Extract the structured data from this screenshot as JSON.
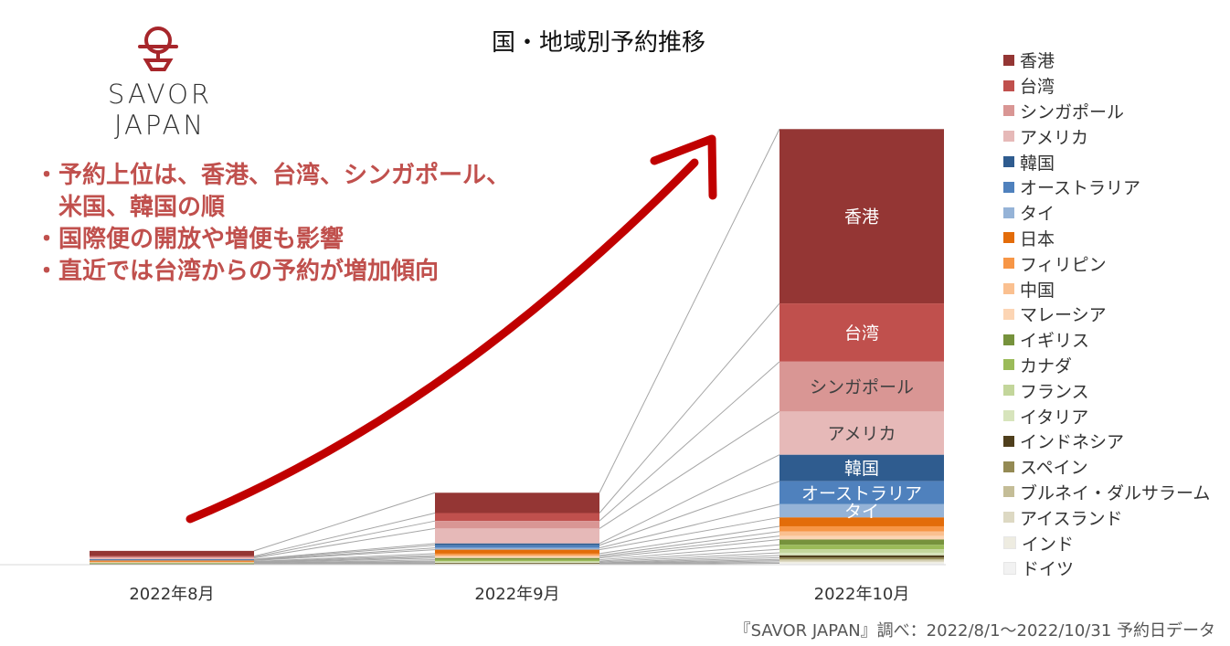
{
  "header": {
    "title": "国・地域別予約推移",
    "logo_text": "SAVOR JAPAN"
  },
  "bullets": [
    "・予約上位は、香港、台湾、シンガポール、",
    "　米国、韓国の順",
    "・国際便の開放や増便も影響",
    "・直近では台湾からの予約が増加傾向"
  ],
  "source": "『SAVOR JAPAN』調べ：2022/8/1～2022/10/31 予約日データ",
  "chart_data": {
    "type": "bar",
    "stacked": true,
    "title": "国・地域別予約推移",
    "categories": [
      "2022年8月",
      "2022年9月",
      "2022年10月"
    ],
    "ylim": [
      0,
      100
    ],
    "grid": false,
    "legend_position": "right",
    "series_lines": true,
    "series": [
      {
        "name": "香港",
        "color": "#943634",
        "values": [
          1.2,
          4.6,
          39.5
        ]
      },
      {
        "name": "台湾",
        "color": "#c0504d",
        "values": [
          0.2,
          1.8,
          13.2
        ]
      },
      {
        "name": "シンガポール",
        "color": "#d99694",
        "values": [
          0.2,
          1.7,
          11.3
        ]
      },
      {
        "name": "アメリカ",
        "color": "#e6b9b8",
        "values": [
          0.3,
          3.4,
          9.8
        ]
      },
      {
        "name": "韓国",
        "color": "#2f5c8f",
        "values": [
          0.1,
          0.4,
          6.0
        ]
      },
      {
        "name": "オーストラリア",
        "color": "#4f81bd",
        "values": [
          0.1,
          0.6,
          5.2
        ]
      },
      {
        "name": "タイ",
        "color": "#95b3d7",
        "values": [
          0.1,
          0.4,
          3.0
        ]
      },
      {
        "name": "日本",
        "color": "#e36c09",
        "values": [
          0.2,
          0.9,
          2.0
        ]
      },
      {
        "name": "フィリピン",
        "color": "#f79646",
        "values": [
          0.1,
          0.4,
          1.2
        ]
      },
      {
        "name": "中国",
        "color": "#fac090",
        "values": [
          0.1,
          0.3,
          1.0
        ]
      },
      {
        "name": "マレーシア",
        "color": "#fcd5b4",
        "values": [
          0.1,
          0.3,
          0.8
        ]
      },
      {
        "name": "イギリス",
        "color": "#76923c",
        "values": [
          0.1,
          0.4,
          1.2
        ]
      },
      {
        "name": "カナダ",
        "color": "#9bbb59",
        "values": [
          0.05,
          0.3,
          1.0
        ]
      },
      {
        "name": "フランス",
        "color": "#c3d69b",
        "values": [
          0.05,
          0.2,
          0.8
        ]
      },
      {
        "name": "イタリア",
        "color": "#d7e4bc",
        "values": [
          0.05,
          0.2,
          0.6
        ]
      },
      {
        "name": "インドネシア",
        "color": "#4f3f1c",
        "values": [
          0.05,
          0.1,
          0.5
        ]
      },
      {
        "name": "スペイン",
        "color": "#948a54",
        "values": [
          0.05,
          0.1,
          0.4
        ]
      },
      {
        "name": "ブルネイ・ダルサラーム",
        "color": "#c4bd97",
        "values": [
          0.02,
          0.05,
          0.3
        ]
      },
      {
        "name": "アイスランド",
        "color": "#ddd9c3",
        "values": [
          0.02,
          0.05,
          0.3
        ]
      },
      {
        "name": "インド",
        "color": "#eeece1",
        "values": [
          0.02,
          0.05,
          0.3
        ]
      },
      {
        "name": "ドイツ",
        "color": "#f2f2f2",
        "values": [
          0.02,
          0.05,
          0.3
        ]
      }
    ],
    "segment_labels": [
      {
        "category": "2022年10月",
        "series": "香港",
        "text": "香港"
      },
      {
        "category": "2022年10月",
        "series": "台湾",
        "text": "台湾"
      },
      {
        "category": "2022年10月",
        "series": "シンガポール",
        "text": "シンガポール"
      },
      {
        "category": "2022年10月",
        "series": "アメリカ",
        "text": "アメリカ"
      },
      {
        "category": "2022年10月",
        "series": "韓国",
        "text": "韓国"
      },
      {
        "category": "2022年10月",
        "series": "オーストラリア",
        "text": "オーストラリア"
      },
      {
        "category": "2022年10月",
        "series": "タイ",
        "text": "タイ"
      }
    ]
  },
  "colors": {
    "accent": "#c0504d",
    "arrow": "#c00000",
    "connector": "#a6a6a6",
    "logo": "#a7262b"
  }
}
